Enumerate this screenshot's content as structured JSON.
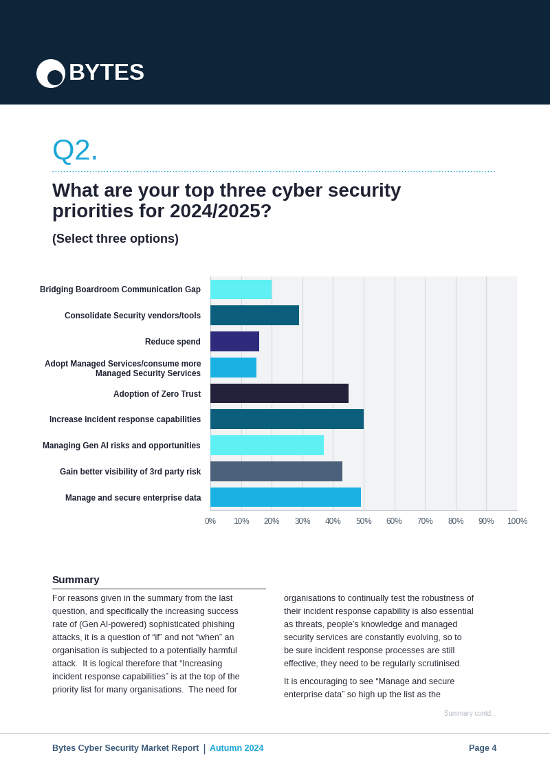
{
  "header": {
    "logo": "BYTES",
    "question_number": "Q2.",
    "title": "What are your top three cyber security priorities for 2024/2025?",
    "subtitle": "(Select three options)"
  },
  "chart_data": {
    "type": "bar",
    "orientation": "horizontal",
    "categories": [
      "Bridging Boardroom Communication Gap",
      "Consolidate Security vendors/tools",
      "Reduce spend",
      "Adopt Managed Services/consume more Managed Security Services",
      "Adoption of Zero Trust",
      "Increase incident response capabilities",
      "Managing Gen AI risks and opportunities",
      "Gain better visibility of 3rd party risk",
      "Manage and secure enterprise data"
    ],
    "values": [
      20,
      29,
      16,
      15,
      45,
      50,
      37,
      43,
      49
    ],
    "colors": [
      "#5ef0f2",
      "#0b5f7c",
      "#2e2b7c",
      "#19b2e3",
      "#22233a",
      "#0b5f7c",
      "#5ef0f2",
      "#4b6179",
      "#19b2e3"
    ],
    "xlim": [
      0,
      100
    ],
    "xticks": [
      {
        "value": 0,
        "label": "0%"
      },
      {
        "value": 10,
        "label": "10%"
      },
      {
        "value": 20,
        "label": "20%"
      },
      {
        "value": 30,
        "label": "30%"
      },
      {
        "value": 40,
        "label": "40%"
      },
      {
        "value": 50,
        "label": "50%"
      },
      {
        "value": 60,
        "label": "60%"
      },
      {
        "value": 70,
        "label": "70%"
      },
      {
        "value": 80,
        "label": "80%"
      },
      {
        "value": 90,
        "label": "90%"
      },
      {
        "value": 100,
        "label": "100%"
      }
    ],
    "grid": true
  },
  "summary": {
    "heading": "Summary",
    "columns": [
      [
        [
          "For reasons given in the summary from the last",
          "question, and specifically the increasing success",
          "rate of (Gen AI-powered) sophisticated phishing",
          "attacks, it is a question of “if” and not “when” an",
          "organisation is subjected to a potentially harmful",
          "attack.  It is logical therefore that “Increasing",
          "incident response capabilities” is at the top of the",
          "priority list for many organisations.  The need for"
        ]
      ],
      [
        [
          "organisations to continually test the robustness of",
          "their incident response capability is also essential",
          "as threats, people’s knowledge and managed",
          "security services are constantly evolving, so to",
          "be sure incident response processes are still",
          "effective, they need to be regularly scrutinised."
        ],
        [
          "It is encouraging to see “Manage and secure",
          "enterprise data” so high up the list as the"
        ]
      ]
    ],
    "continued": "Summary contd..."
  },
  "footer": {
    "report": "Bytes Cyber Security Market Report",
    "edition": "Autumn 2024",
    "page": "Page 4"
  }
}
